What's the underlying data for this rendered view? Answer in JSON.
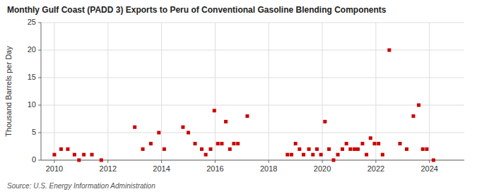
{
  "chart_data": {
    "type": "scatter",
    "title": "Monthly Gulf Coast (PADD 3) Exports to Peru of Conventional Gasoline Blending Components",
    "y_label": "Thousand Barrels per Day",
    "annotations": [
      "Source: U.S. Energy Information Administration"
    ],
    "color": "#cc0000",
    "marker": "square",
    "grid": true,
    "xlim": [
      2009.5,
      2025.3
    ],
    "ylim": [
      0,
      25
    ],
    "xticks": [
      2010,
      2012,
      2014,
      2016,
      2018,
      2020,
      2022,
      2024
    ],
    "yticks": [
      0,
      5,
      10,
      15,
      20,
      25
    ],
    "x": [
      2010.0,
      2010.25,
      2010.5,
      2010.75,
      2010.92,
      2011.1,
      2011.4,
      2011.75,
      2013.0,
      2013.3,
      2013.6,
      2013.9,
      2014.1,
      2014.8,
      2015.0,
      2015.25,
      2015.5,
      2015.65,
      2015.83,
      2015.97,
      2016.1,
      2016.25,
      2016.4,
      2016.55,
      2016.7,
      2016.85,
      2017.2,
      2018.7,
      2018.85,
      2019.0,
      2019.15,
      2019.3,
      2019.5,
      2019.65,
      2019.8,
      2019.95,
      2020.1,
      2020.25,
      2020.42,
      2020.58,
      2020.75,
      2020.9,
      2021.05,
      2021.2,
      2021.33,
      2021.5,
      2021.65,
      2021.8,
      2021.95,
      2022.1,
      2022.25,
      2022.5,
      2022.9,
      2023.15,
      2023.4,
      2023.6,
      2023.75,
      2023.9,
      2024.15
    ],
    "values": [
      1.0,
      2.0,
      2.0,
      1.0,
      0.0,
      1.0,
      1.0,
      0.0,
      6.0,
      2.0,
      3.0,
      5.0,
      2.0,
      6.0,
      5.0,
      3.0,
      2.0,
      1.0,
      2.0,
      9.0,
      3.0,
      3.0,
      7.0,
      2.0,
      3.0,
      3.0,
      8.0,
      1.0,
      1.0,
      3.0,
      2.0,
      1.0,
      2.0,
      1.0,
      2.0,
      1.0,
      7.0,
      2.0,
      0.0,
      1.0,
      2.0,
      3.0,
      2.0,
      2.0,
      2.0,
      3.0,
      1.0,
      4.0,
      3.0,
      3.0,
      1.0,
      20.0,
      3.0,
      2.0,
      8.0,
      10.0,
      2.0,
      2.0,
      0.0
    ]
  }
}
